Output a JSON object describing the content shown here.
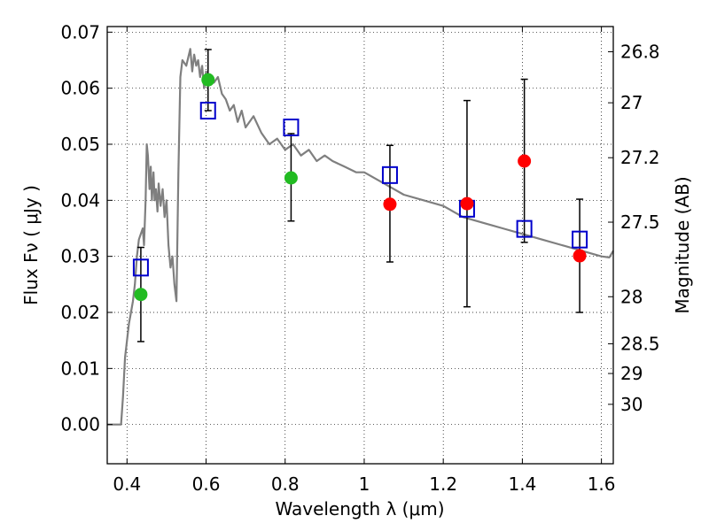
{
  "chart_data": {
    "type": "scatter",
    "xlabel": "Wavelength  λ (μm)",
    "ylabel": "Flux  Fν  ( μJy )",
    "ylabel_right": "Magnitude (AB)",
    "xlim": [
      0.35,
      1.63
    ],
    "ylim": [
      -0.007,
      0.071
    ],
    "grid": true,
    "x_ticks": [
      0.4,
      0.6,
      0.8,
      1.0,
      1.2,
      1.4,
      1.6
    ],
    "x_tick_labels": [
      "0.4",
      "0.6",
      "0.8",
      "1",
      "1.2",
      "1.4",
      "1.6"
    ],
    "y_ticks": [
      0.0,
      0.01,
      0.02,
      0.03,
      0.04,
      0.05,
      0.06,
      0.07
    ],
    "y_tick_labels": [
      "0.00",
      "0.01",
      "0.02",
      "0.03",
      "0.04",
      "0.05",
      "0.06",
      "0.07"
    ],
    "mag_ticks": [
      {
        "label": "26.8",
        "flux": 0.0665
      },
      {
        "label": "27",
        "flux": 0.0574
      },
      {
        "label": "27.2",
        "flux": 0.0476
      },
      {
        "label": "27.5",
        "flux": 0.0361
      },
      {
        "label": "28",
        "flux": 0.0228
      },
      {
        "label": "28.5",
        "flux": 0.0144
      },
      {
        "label": "29",
        "flux": 0.0091
      },
      {
        "label": "30",
        "flux": 0.0036
      }
    ],
    "series": [
      {
        "marker": "square",
        "color": "#0000cc",
        "x": [
          0.435,
          0.605,
          0.815,
          1.065,
          1.26,
          1.405,
          1.545
        ],
        "y": [
          0.028,
          0.056,
          0.053,
          0.0445,
          0.0385,
          0.0349,
          0.033
        ]
      },
      {
        "marker": "circle",
        "color": "#22bb22",
        "x": [
          0.435,
          0.605,
          0.815
        ],
        "y": [
          0.0232,
          0.0615,
          0.044
        ],
        "yerr_low": [
          0.0148,
          0.056,
          0.0363
        ],
        "yerr_high": [
          0.0316,
          0.0669,
          0.0519
        ]
      },
      {
        "marker": "circle",
        "color": "#ff0000",
        "x": [
          1.065,
          1.26,
          1.405,
          1.545
        ],
        "y": [
          0.0393,
          0.0394,
          0.047,
          0.0301
        ],
        "yerr_low": [
          0.029,
          0.021,
          0.0325,
          0.02
        ],
        "yerr_high": [
          0.0498,
          0.0578,
          0.0616,
          0.0402
        ]
      }
    ],
    "model_curve": {
      "color": "#7f7f7f",
      "x": [
        0.35,
        0.385,
        0.39,
        0.395,
        0.4,
        0.405,
        0.41,
        0.415,
        0.42,
        0.425,
        0.43,
        0.435,
        0.44,
        0.443,
        0.447,
        0.45,
        0.453,
        0.457,
        0.46,
        0.463,
        0.467,
        0.47,
        0.473,
        0.477,
        0.48,
        0.485,
        0.49,
        0.495,
        0.5,
        0.505,
        0.51,
        0.515,
        0.52,
        0.525,
        0.53,
        0.535,
        0.54,
        0.55,
        0.56,
        0.565,
        0.57,
        0.575,
        0.58,
        0.585,
        0.59,
        0.595,
        0.6,
        0.61,
        0.62,
        0.63,
        0.64,
        0.65,
        0.66,
        0.67,
        0.68,
        0.69,
        0.7,
        0.72,
        0.74,
        0.76,
        0.78,
        0.8,
        0.82,
        0.84,
        0.86,
        0.88,
        0.9,
        0.92,
        0.95,
        0.98,
        1.0,
        1.05,
        1.1,
        1.15,
        1.2,
        1.25,
        1.3,
        1.35,
        1.4,
        1.45,
        1.5,
        1.55,
        1.6,
        1.62,
        1.63
      ],
      "y": [
        0.0,
        0.0,
        0.005,
        0.012,
        0.015,
        0.018,
        0.02,
        0.022,
        0.025,
        0.03,
        0.033,
        0.034,
        0.035,
        0.032,
        0.04,
        0.05,
        0.048,
        0.042,
        0.046,
        0.04,
        0.045,
        0.04,
        0.042,
        0.038,
        0.043,
        0.039,
        0.042,
        0.037,
        0.04,
        0.032,
        0.028,
        0.03,
        0.025,
        0.022,
        0.045,
        0.062,
        0.065,
        0.064,
        0.067,
        0.063,
        0.066,
        0.064,
        0.065,
        0.062,
        0.064,
        0.06,
        0.063,
        0.062,
        0.061,
        0.062,
        0.059,
        0.058,
        0.056,
        0.057,
        0.054,
        0.056,
        0.053,
        0.055,
        0.052,
        0.05,
        0.051,
        0.049,
        0.05,
        0.048,
        0.049,
        0.047,
        0.048,
        0.047,
        0.046,
        0.045,
        0.045,
        0.043,
        0.041,
        0.04,
        0.039,
        0.037,
        0.036,
        0.035,
        0.034,
        0.033,
        0.032,
        0.031,
        0.03,
        0.0298,
        0.031
      ]
    }
  }
}
